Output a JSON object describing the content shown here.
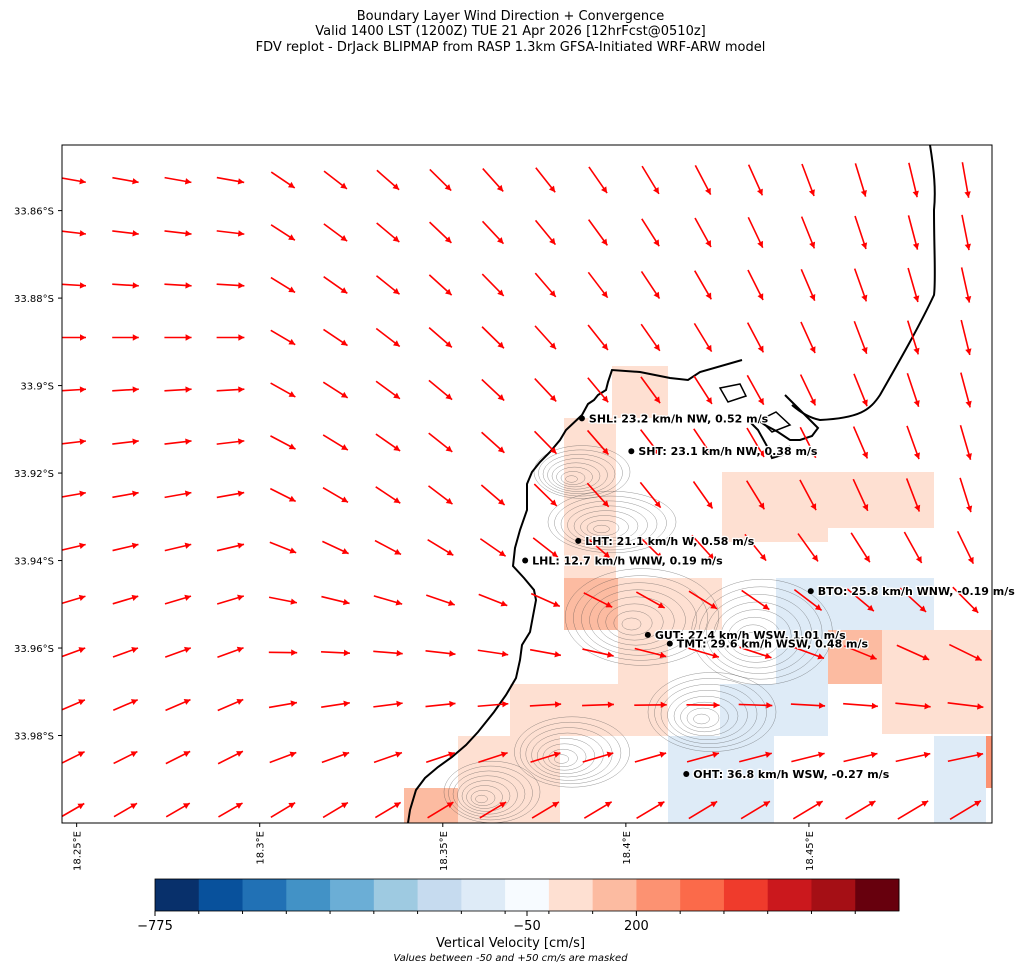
{
  "titles": {
    "line1": "Boundary Layer Wind Direction + Convergence",
    "line2": "Valid 1400 LST (1200Z) TUE 21 Apr 2026 [12hrFcst@0510z]",
    "line3": "FDV replot - DrJack BLIPMAP from RASP 1.3km GFSA-Initiated WRF-ARW model"
  },
  "colorbar": {
    "label": "Vertical Velocity [cm/s]",
    "note": "Values between -50 and +50 cm/s are masked",
    "tick_labels": [
      "−775",
      "−50",
      "200"
    ],
    "tick_values": [
      -775,
      -50,
      200
    ],
    "colors": [
      "#08306b",
      "#08519c",
      "#2171b5",
      "#4292c6",
      "#6baed6",
      "#9ecae1",
      "#c6dbef",
      "#deebf7",
      "#f7fbff",
      "#fee0d2",
      "#fcbba1",
      "#fc9272",
      "#fb6a4a",
      "#ef3b2c",
      "#cb181d",
      "#a50f15",
      "#67000d"
    ]
  },
  "chart_data": {
    "type": "map",
    "title": "Boundary Layer Wind Direction + Convergence",
    "xlabel": "",
    "ylabel": "",
    "xlim": [
      18.246,
      18.5
    ],
    "ylim": [
      -34.0,
      -33.845
    ],
    "x_ticks": [
      {
        "value": 18.25,
        "label": "18.25°E"
      },
      {
        "value": 18.3,
        "label": "18.3°E"
      },
      {
        "value": 18.35,
        "label": "18.35°E"
      },
      {
        "value": 18.4,
        "label": "18.4°E"
      },
      {
        "value": 18.45,
        "label": "18.45°E"
      }
    ],
    "y_ticks": [
      {
        "value": -33.86,
        "label": "33.86°S"
      },
      {
        "value": -33.88,
        "label": "33.88°S"
      },
      {
        "value": -33.9,
        "label": "33.9°S"
      },
      {
        "value": -33.92,
        "label": "33.92°S"
      },
      {
        "value": -33.94,
        "label": "33.94°S"
      },
      {
        "value": -33.96,
        "label": "33.96°S"
      },
      {
        "value": -33.98,
        "label": "33.98°S"
      }
    ],
    "stations": [
      {
        "code": "SHL",
        "lon": 18.388,
        "lat": -33.9075,
        "label": "SHL: 23.2 km/h NW, 0.52 m/s"
      },
      {
        "code": "SHT",
        "lon": 18.4015,
        "lat": -33.915,
        "label": "SHT: 23.1 km/h NW, 0.38 m/s"
      },
      {
        "code": "LHT",
        "lon": 18.387,
        "lat": -33.9355,
        "label": "LHT: 21.1 km/h W, 0.58 m/s"
      },
      {
        "code": "LHL",
        "lon": 18.3725,
        "lat": -33.94,
        "label": "LHL: 12.7 km/h WNW, 0.19 m/s"
      },
      {
        "code": "BTO",
        "lon": 18.4505,
        "lat": -33.947,
        "label": "BTO: 25.8 km/h WNW, -0.19 m/s"
      },
      {
        "code": "GUT",
        "lon": 18.406,
        "lat": -33.957,
        "label": "GUT: 27.4 km/h WSW, 1.01 m/s"
      },
      {
        "code": "TMT",
        "lon": 18.412,
        "lat": -33.959,
        "label": "TMT: 29.6 km/h WSW, 0.48 m/s"
      },
      {
        "code": "OHT",
        "lon": 18.4165,
        "lat": -33.9888,
        "label": "OHT: 36.8 km/h WSW, -0.27 m/s"
      }
    ]
  }
}
